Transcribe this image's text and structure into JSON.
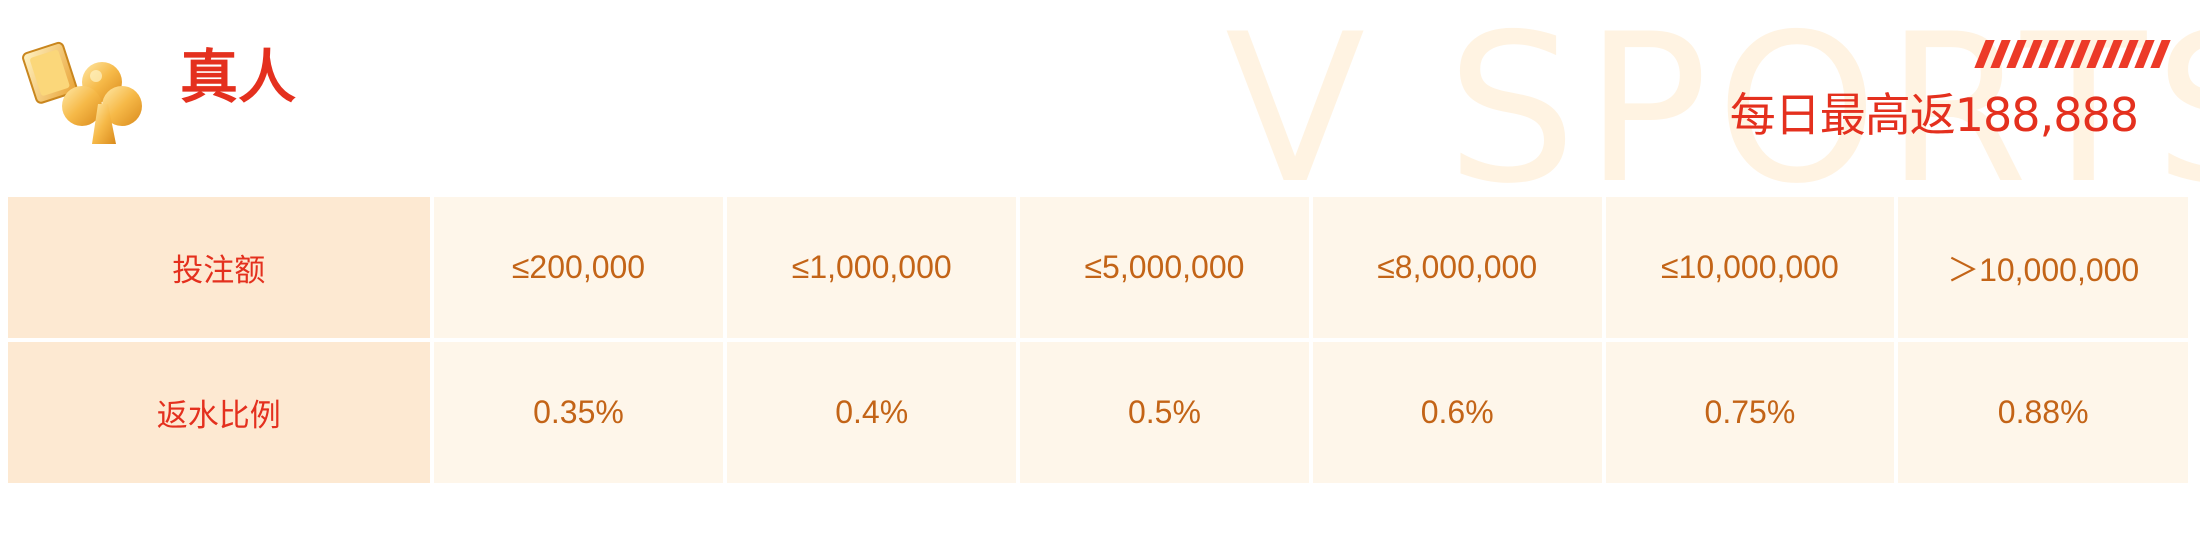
{
  "watermark": "V SPORTS",
  "section": {
    "title": "真人",
    "icon": "club-card-icon"
  },
  "promo": {
    "headline": "每日最高返188,888"
  },
  "rebate_table": {
    "row_headers": [
      "投注额",
      "返水比例"
    ],
    "bet_tiers": [
      "≤200,000",
      "≤1,000,000",
      "≤5,000,000",
      "≤8,000,000",
      "≤10,000,000",
      "＞10,000,000"
    ],
    "rates": [
      "0.35%",
      "0.4%",
      "0.5%",
      "0.6%",
      "0.75%",
      "0.88%"
    ]
  },
  "colors": {
    "accent_red": "#e4301e",
    "value_orange": "#c36417",
    "label_cell_bg": "#fde9d2",
    "value_cell_bg": "#fef6ea",
    "watermark": "#fff1dd"
  }
}
